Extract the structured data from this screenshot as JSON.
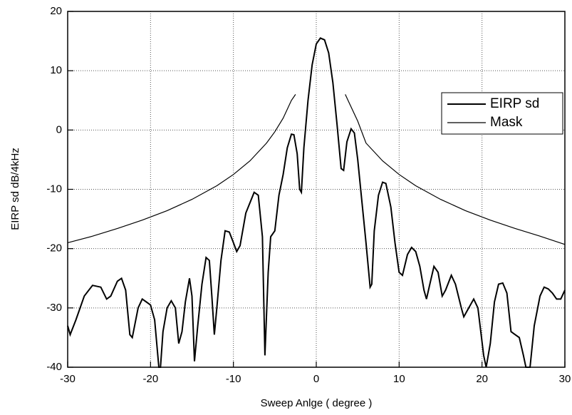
{
  "chart_data": {
    "type": "line",
    "x_label": "Sweep Anlge ( degree )",
    "y_label": "EIRP sd dB/4kHz",
    "xlim": [
      -30,
      30
    ],
    "xticks": [
      -30,
      -20,
      -10,
      0,
      10,
      20,
      30
    ],
    "ylim": [
      -40,
      20
    ],
    "yticks": [
      -40,
      -30,
      -20,
      -10,
      0,
      10,
      20
    ],
    "grid": true,
    "legend": "upper right",
    "series": [
      {
        "name": "EIRP sd",
        "color": "#000000",
        "x": [
          -30,
          -29.7,
          -29,
          -28,
          -27,
          -26,
          -25.3,
          -24.8,
          -24,
          -23.5,
          -23,
          -22.5,
          -22.2,
          -21.5,
          -21,
          -20.5,
          -20,
          -19.5,
          -19,
          -18.8,
          -18.5,
          -18,
          -17.5,
          -17,
          -16.6,
          -16.2,
          -15.8,
          -15.3,
          -15,
          -14.7,
          -14.3,
          -13.8,
          -13.3,
          -12.9,
          -12.6,
          -12.3,
          -12,
          -11.5,
          -11,
          -10.5,
          -10,
          -9.6,
          -9.2,
          -8.5,
          -7.5,
          -7,
          -6.5,
          -6.2,
          -5.8,
          -5.5,
          -5,
          -4.5,
          -4,
          -3.5,
          -3,
          -2.7,
          -2.3,
          -2,
          -1.8,
          -1.5,
          -1,
          -0.5,
          0,
          0.5,
          1,
          1.5,
          2,
          2.5,
          3,
          3.3,
          3.7,
          4.2,
          4.6,
          5,
          5.5,
          6,
          6.5,
          6.7,
          7,
          7.5,
          8,
          8.4,
          9,
          9.5,
          10,
          10.4,
          11,
          11.5,
          12,
          12.5,
          13,
          13.3,
          13.7,
          14.2,
          14.7,
          15.2,
          15.6,
          16.3,
          16.8,
          17.5,
          17.8,
          18.2,
          19,
          19.5,
          20.2,
          20.5,
          21,
          21.5,
          22,
          22.5,
          23,
          23.5,
          24,
          24.5,
          25,
          25.3,
          25.8,
          26.3,
          27,
          27.5,
          28,
          28.5,
          29,
          29.5,
          30
        ],
        "values": [
          -33,
          -34.5,
          -32,
          -28,
          -26.2,
          -26.5,
          -28.5,
          -28,
          -25.5,
          -25,
          -27,
          -34.5,
          -35,
          -30,
          -28.5,
          -29,
          -29.5,
          -32,
          -40,
          -40,
          -34,
          -30,
          -28.8,
          -30,
          -36,
          -34,
          -29,
          -25,
          -28,
          -39,
          -33,
          -26,
          -21.5,
          -22,
          -28,
          -34.5,
          -30,
          -22,
          -17,
          -17.2,
          -19,
          -20.5,
          -19.5,
          -14,
          -10.5,
          -11,
          -18,
          -38,
          -24,
          -18,
          -17,
          -11,
          -7.5,
          -3,
          -0.7,
          -0.8,
          -4,
          -10,
          -10.5,
          -3,
          5,
          11,
          14.5,
          15.5,
          15.2,
          13,
          8,
          1,
          -6.5,
          -6.8,
          -2,
          0.2,
          -0.5,
          -5,
          -12,
          -19,
          -26.5,
          -26,
          -17,
          -11,
          -8.8,
          -9,
          -13,
          -19,
          -24,
          -24.5,
          -21,
          -19.8,
          -20.5,
          -23,
          -27,
          -28.5,
          -26,
          -23,
          -24,
          -28,
          -27,
          -24.5,
          -26,
          -30,
          -31.5,
          -30.5,
          -28.5,
          -30,
          -38,
          -40,
          -36,
          -29,
          -26,
          -25.8,
          -27.5,
          -34,
          -34.5,
          -35,
          -38,
          -40,
          -40,
          -33,
          -28,
          -26.5,
          -26.8,
          -27.5,
          -28.5,
          -28.5,
          -27
        ]
      },
      {
        "name": "Mask",
        "color": "#000000",
        "x": [
          -30,
          -27,
          -24,
          -21,
          -18,
          -15,
          -12,
          -10,
          -8,
          -6,
          -5,
          -4,
          -3,
          -2.5,
          0.5,
          3.5,
          4,
          5,
          6,
          8,
          10,
          12,
          15,
          18,
          21,
          24,
          27,
          30
        ],
        "values": [
          -19,
          -17.9,
          -16.6,
          -15.2,
          -13.6,
          -11.7,
          -9.4,
          -7.5,
          -5.2,
          -2.2,
          -0.3,
          2,
          5,
          6,
          null,
          6,
          4.5,
          1.5,
          -2.2,
          -5.2,
          -7.5,
          -9.4,
          -11.7,
          -13.6,
          -15.2,
          -16.6,
          -17.9,
          -19.3
        ]
      }
    ]
  }
}
